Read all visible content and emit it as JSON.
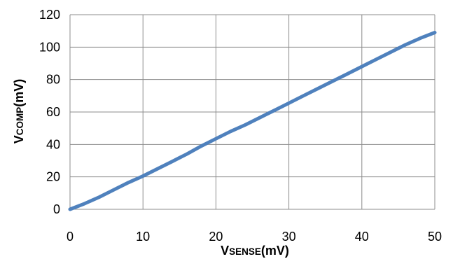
{
  "chart_data": {
    "type": "line",
    "title": "",
    "xlabel": {
      "main": "V",
      "sub": "SENSE",
      "unit": "(mV)"
    },
    "ylabel": {
      "main": "V",
      "sub": "COMP",
      "unit": "(mV)"
    },
    "xlim": [
      0,
      50
    ],
    "ylim": [
      0,
      120
    ],
    "xticks": [
      0,
      10,
      20,
      30,
      40,
      50
    ],
    "yticks": [
      0,
      20,
      40,
      60,
      80,
      100,
      120
    ],
    "grid": true,
    "legend": "none",
    "series": [
      {
        "color": "#4f81bd",
        "x": [
          0,
          2,
          4,
          6,
          8,
          10,
          12,
          14,
          16,
          18,
          20,
          22,
          24,
          26,
          28,
          30,
          32,
          34,
          36,
          38,
          40,
          42,
          44,
          46,
          48,
          50
        ],
        "y": [
          0,
          3.5,
          7.5,
          12,
          16.5,
          20.5,
          25,
          29.5,
          34,
          39,
          43.5,
          48,
          52,
          56.5,
          61,
          65.5,
          70,
          74.5,
          79,
          83.5,
          88,
          92.5,
          97,
          101.5,
          105.5,
          109
        ]
      }
    ]
  }
}
